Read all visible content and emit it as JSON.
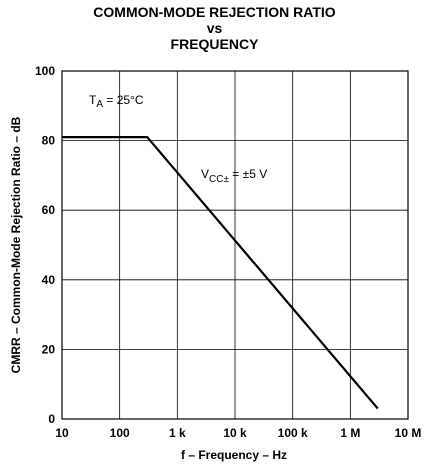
{
  "chart_data": {
    "type": "line",
    "title_lines": [
      "COMMON-MODE REJECTION RATIO",
      "vs",
      "FREQUENCY"
    ],
    "xlabel": "f – Frequency – Hz",
    "ylabel": "CMRR – Common-Mode Rejection Ratio – dB",
    "x_scale": "log",
    "xlim": [
      10,
      10000000
    ],
    "ylim": [
      0,
      100
    ],
    "x_ticks": [
      {
        "value": 10,
        "label": "10"
      },
      {
        "value": 100,
        "label": "100"
      },
      {
        "value": 1000,
        "label": "1 k"
      },
      {
        "value": 10000,
        "label": "10 k"
      },
      {
        "value": 100000,
        "label": "100 k"
      },
      {
        "value": 1000000,
        "label": "1 M"
      },
      {
        "value": 10000000,
        "label": "10 M"
      }
    ],
    "y_ticks": [
      {
        "value": 0,
        "label": "0"
      },
      {
        "value": 20,
        "label": "20"
      },
      {
        "value": 40,
        "label": "40"
      },
      {
        "value": 60,
        "label": "60"
      },
      {
        "value": 80,
        "label": "80"
      },
      {
        "value": 100,
        "label": "100"
      }
    ],
    "grid": true,
    "series": [
      {
        "x": [
          10,
          300,
          3000000
        ],
        "y": [
          81,
          81,
          3
        ]
      }
    ],
    "annotations": {
      "temperature": {
        "base": "T",
        "sub": "A",
        "rest": " = 25°C"
      },
      "supply": {
        "base": "V",
        "sub": "CC±",
        "rest": " = ±5 V"
      }
    }
  }
}
